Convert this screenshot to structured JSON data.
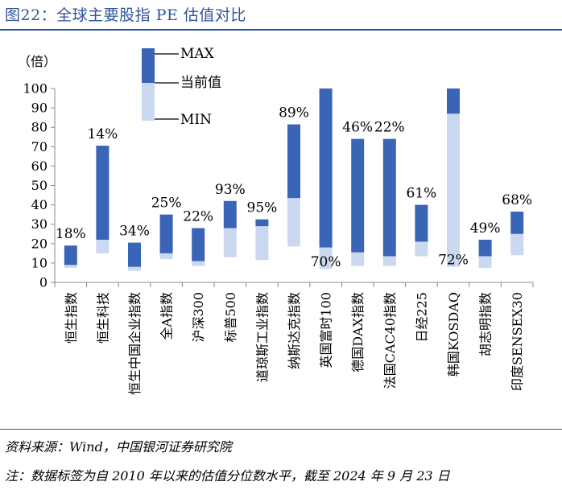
{
  "header": {
    "title": "图22：全球主要股指 PE 估值对比"
  },
  "footer": {
    "source": "资料来源：Wind，中国银河证券研究院",
    "note": "注：数据标签为自 2010 年以来的估值分位数水平，截至 2024 年 9 月 23 日"
  },
  "chart_data": {
    "type": "bar",
    "subtype": "floating-range",
    "ylabel": "（倍）",
    "ylim": [
      0,
      100
    ],
    "yticks": [
      0,
      10,
      20,
      30,
      40,
      50,
      60,
      70,
      80,
      90,
      100
    ],
    "grid": false,
    "legend": {
      "position": "top-center",
      "labels": {
        "max": "MAX",
        "current": "当前值",
        "min": "MIN"
      }
    },
    "colors": {
      "upper": "#3a64b5",
      "lower": "#cad8f0"
    },
    "categories": [
      "恒生指数",
      "恒生科技",
      "恒生中国企业指数",
      "全A指数",
      "沪深300",
      "标普500",
      "道琼斯工业指数",
      "纳斯达克指数",
      "英国富时100",
      "德国DAX指数",
      "法国CAC40指数",
      "日经225",
      "韩国KOSDAQ",
      "胡志明指数",
      "印度SENSEX30"
    ],
    "series": [
      {
        "name": "MAX",
        "values": [
          19,
          70.5,
          20.5,
          35,
          28,
          42,
          32.5,
          81.5,
          100,
          74,
          74,
          40,
          100,
          22,
          36.5
        ]
      },
      {
        "name": "当前值",
        "values": [
          9,
          22,
          8,
          15,
          11,
          28,
          29,
          43.5,
          18,
          15.5,
          13.5,
          21,
          87,
          13.5,
          25
        ]
      },
      {
        "name": "MIN",
        "values": [
          7.5,
          15,
          6,
          12,
          8.5,
          13,
          11.5,
          18.5,
          7,
          8.5,
          8.5,
          13.5,
          8,
          7.5,
          14
        ]
      }
    ],
    "labels": [
      "18%",
      "14%",
      "34%",
      "25%",
      "22%",
      "93%",
      "95%",
      "89%",
      "70%",
      "46%",
      "22%",
      "61%",
      "72%",
      "49%",
      "68%"
    ],
    "label_positions": [
      "above",
      "above",
      "above",
      "above",
      "above",
      "above",
      "above",
      "above",
      "below",
      "above",
      "above",
      "above",
      "below",
      "above",
      "above"
    ]
  }
}
